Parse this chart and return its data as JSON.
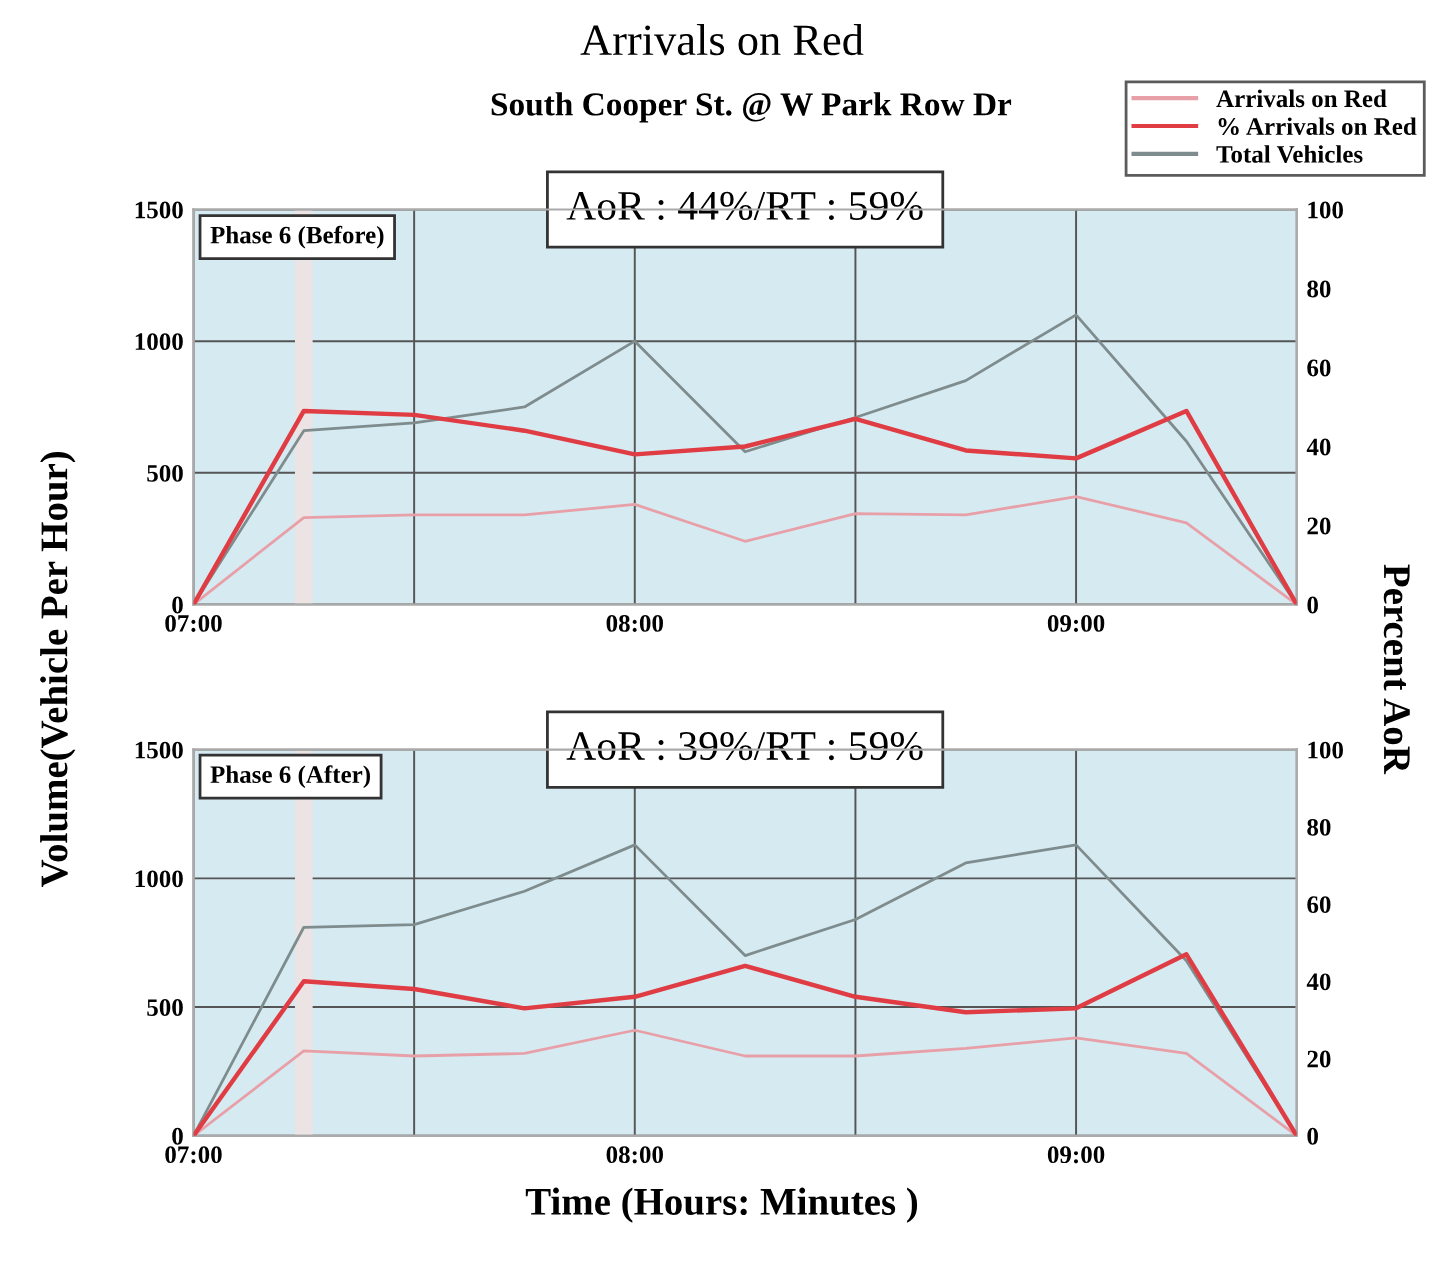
{
  "chart_data": [
    {
      "type": "line",
      "title": "Arrivals on Red",
      "subtitle": "South Cooper St. @ W Park Row Dr",
      "ylabel": "Volume(Vehicle Per Hour)",
      "y2label": "Percent AoR",
      "annotations": [
        "AoR : 44%/RT : 59%",
        "Phase 6 (Before)"
      ],
      "x": [
        7.0,
        7.25,
        7.5,
        7.75,
        8.0,
        8.25,
        8.5,
        8.75,
        9.0,
        9.25,
        9.5
      ],
      "series": [
        {
          "name": "Arrivals on Red",
          "color": "#e8a0a8",
          "values": [
            0,
            330,
            340,
            340,
            380,
            240,
            345,
            340,
            410,
            310,
            0
          ]
        },
        {
          "name": "% Arrivals on Red",
          "color": "#e03c44",
          "axis": "y2",
          "values": [
            0,
            49,
            48,
            44,
            38,
            40,
            47,
            39,
            37,
            49,
            0
          ]
        },
        {
          "name": "Total Vehicles",
          "color": "#7f8c8d",
          "values": [
            0,
            660,
            690,
            750,
            1000,
            580,
            710,
            850,
            1100,
            620,
            0
          ]
        }
      ],
      "bands": [
        {
          "axis": "x",
          "from": 7.23,
          "to": 7.27,
          "color": "#ece4e4"
        }
      ],
      "xlim": [
        7.0,
        9.5
      ],
      "xticks": [
        {
          "value": 7,
          "label": "07:00"
        },
        {
          "value": 7.5,
          "label": null
        },
        {
          "value": 8,
          "label": "08:00"
        },
        {
          "value": 8.5,
          "label": null
        },
        {
          "value": 9,
          "label": "09:00"
        }
      ],
      "ylim": [
        0,
        1500
      ],
      "yticks": [
        0,
        500,
        1000,
        1500
      ],
      "y2lim": [
        0,
        100
      ],
      "y2ticks": [
        0,
        20,
        40,
        60,
        80,
        100
      ],
      "grid": true,
      "legend": "top right",
      "line_style": "solid",
      "marker": "none"
    },
    {
      "type": "line",
      "xlabel": "Time (Hours: Minutes )",
      "annotations": [
        "AoR : 39%/RT : 59%",
        "Phase 6 (After)"
      ],
      "x": [
        7.0,
        7.25,
        7.5,
        7.75,
        8.0,
        8.25,
        8.5,
        8.75,
        9.0,
        9.25,
        9.5
      ],
      "series": [
        {
          "color": "#e8a0a8",
          "values": [
            0,
            330,
            310,
            320,
            410,
            310,
            310,
            340,
            380,
            320,
            0
          ]
        },
        {
          "color": "#e03c44",
          "axis": "y2",
          "values": [
            0,
            40,
            38,
            33,
            36,
            44,
            36,
            32,
            33,
            47,
            0
          ]
        },
        {
          "color": "#7f8c8d",
          "values": [
            0,
            810,
            820,
            950,
            1130,
            700,
            840,
            1060,
            1130,
            680,
            0
          ]
        }
      ],
      "bands": [
        {
          "axis": "x",
          "from": 7.23,
          "to": 7.27,
          "color": "#ece4e4"
        }
      ],
      "xlim": [
        7.0,
        9.5
      ],
      "xticks": [
        {
          "value": 7,
          "label": "07:00"
        },
        {
          "value": 7.5,
          "label": null
        },
        {
          "value": 8,
          "label": "08:00"
        },
        {
          "value": 8.5,
          "label": null
        },
        {
          "value": 9,
          "label": "09:00"
        }
      ],
      "ylim": [
        0,
        1500
      ],
      "yticks": [
        0,
        500,
        1000,
        1500
      ],
      "y2lim": [
        0,
        100
      ],
      "y2ticks": [
        0,
        20,
        40,
        60,
        80,
        100
      ],
      "grid": true,
      "line_style": "solid",
      "marker": "none"
    }
  ]
}
